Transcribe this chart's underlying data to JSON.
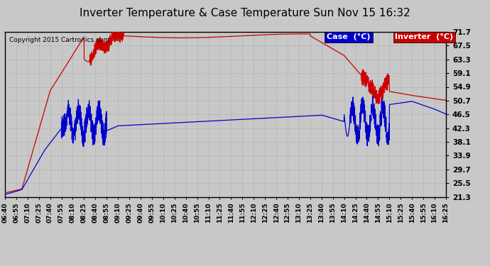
{
  "title": "Inverter Temperature & Case Temperature Sun Nov 15 16:32",
  "copyright": "Copyright 2015 Cartronics.com",
  "background_color": "#c8c8c8",
  "plot_bg_color": "#c8c8c8",
  "grid_color": "#999999",
  "ylabel_right_values": [
    21.3,
    25.5,
    29.7,
    33.9,
    38.1,
    42.3,
    46.5,
    50.7,
    54.9,
    59.1,
    63.3,
    67.5,
    71.7
  ],
  "ylim": [
    21.3,
    71.7
  ],
  "x_tick_labels": [
    "06:40",
    "06:55",
    "07:10",
    "07:25",
    "07:40",
    "07:55",
    "08:10",
    "08:25",
    "08:40",
    "08:55",
    "09:10",
    "09:25",
    "09:40",
    "09:55",
    "10:10",
    "10:25",
    "10:40",
    "10:55",
    "11:10",
    "11:25",
    "11:40",
    "11:55",
    "12:10",
    "12:25",
    "12:40",
    "12:55",
    "13:10",
    "13:25",
    "13:40",
    "13:55",
    "14:10",
    "14:25",
    "14:40",
    "14:55",
    "15:10",
    "15:25",
    "15:40",
    "15:55",
    "16:10",
    "16:25"
  ],
  "case_color": "#0000cc",
  "inverter_color": "#cc0000",
  "legend_case_bg": "#0000cc",
  "legend_inverter_bg": "#cc0000",
  "legend_text_color": "#ffffff",
  "title_color": "#000000",
  "copyright_color": "#000000",
  "tick_label_color": "#000000",
  "figsize": [
    6.9,
    3.75
  ],
  "dpi": 100
}
